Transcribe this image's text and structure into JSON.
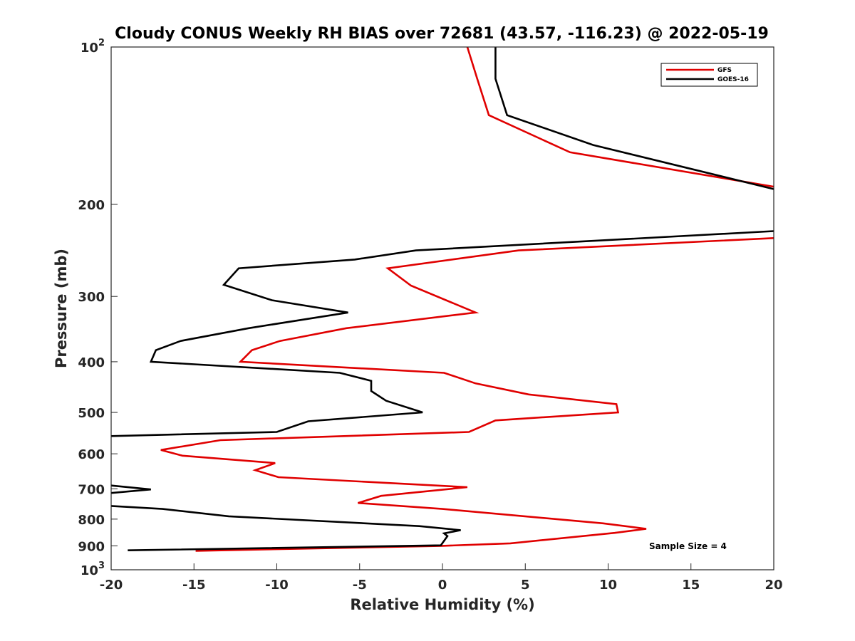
{
  "chart_data": {
    "type": "line",
    "title": "Cloudy CONUS Weekly RH BIAS over 72681 (43.57, -116.23) @ 2022-05-19",
    "xlabel": "Relative Humidity (%)",
    "ylabel": "Pressure (mb)",
    "xlim": [
      -20,
      20
    ],
    "ylim": [
      100,
      1000
    ],
    "y_scale": "log",
    "y_reversed": true,
    "grid": false,
    "legend_location": "top-right",
    "x_ticks": [
      -20,
      -15,
      -10,
      -5,
      0,
      5,
      10,
      15,
      20
    ],
    "x_tick_labels": [
      "-20",
      "-15",
      "-10",
      "-5",
      "0",
      "5",
      "10",
      "15",
      "20"
    ],
    "y_ticks": [
      {
        "value": 100,
        "base": "10",
        "exp": "2"
      },
      {
        "value": 200,
        "label": "200"
      },
      {
        "value": 300,
        "label": "300"
      },
      {
        "value": 400,
        "label": "400"
      },
      {
        "value": 500,
        "label": "500"
      },
      {
        "value": 600,
        "label": "600"
      },
      {
        "value": 700,
        "label": "700"
      },
      {
        "value": 800,
        "label": "800"
      },
      {
        "value": 900,
        "label": "900"
      },
      {
        "value": 1000,
        "base": "10",
        "exp": "3"
      }
    ],
    "series": [
      {
        "name": "GFS",
        "color": "#e00000",
        "segments": [
          [
            [
              1.5,
              100
            ],
            [
              2.1,
              115
            ],
            [
              2.8,
              135
            ],
            [
              7.7,
              159
            ],
            [
              20.0,
              185
            ]
          ],
          [
            [
              20.0,
              232
            ],
            [
              4.6,
              245
            ],
            [
              -3.3,
              265
            ],
            [
              -1.9,
              286
            ],
            [
              2.0,
              322
            ],
            [
              -5.8,
              345
            ],
            [
              -9.8,
              365
            ],
            [
              -11.5,
              380
            ],
            [
              -12.2,
              400
            ],
            [
              0.1,
              420
            ],
            [
              2.0,
              440
            ],
            [
              5.2,
              462
            ],
            [
              10.5,
              482
            ],
            [
              10.6,
              500
            ],
            [
              3.2,
              518
            ],
            [
              1.6,
              545
            ],
            [
              -13.4,
              565
            ],
            [
              -17.0,
              590
            ],
            [
              -15.7,
              605
            ],
            [
              -10.1,
              625
            ],
            [
              -11.3,
              645
            ],
            [
              -9.9,
              665
            ],
            [
              1.5,
              695
            ],
            [
              -3.7,
              722
            ],
            [
              -5.1,
              745
            ],
            [
              0.0,
              765
            ],
            [
              9.7,
              815
            ],
            [
              12.3,
              835
            ],
            [
              10.4,
              850
            ],
            [
              4.1,
              890
            ],
            [
              0.0,
              900
            ],
            [
              -14.9,
              920
            ]
          ]
        ]
      },
      {
        "name": "GOES-16",
        "color": "#000000",
        "segments": [
          [
            [
              3.2,
              100
            ],
            [
              3.2,
              115
            ],
            [
              3.9,
              135
            ],
            [
              9.1,
              154
            ],
            [
              20.0,
              187
            ]
          ],
          [
            [
              20.0,
              225
            ],
            [
              -1.6,
              245
            ],
            [
              -5.3,
              255
            ],
            [
              -12.3,
              265
            ],
            [
              -13.2,
              285
            ],
            [
              -10.3,
              305
            ],
            [
              -5.7,
              322
            ],
            [
              -11.7,
              345
            ],
            [
              -15.8,
              365
            ],
            [
              -17.3,
              380
            ],
            [
              -17.6,
              400
            ],
            [
              -6.2,
              420
            ],
            [
              -4.3,
              435
            ],
            [
              -4.3,
              455
            ],
            [
              -3.4,
              475
            ],
            [
              -1.2,
              500
            ],
            [
              -8.1,
              520
            ],
            [
              -10.0,
              545
            ],
            [
              -20.0,
              555
            ]
          ],
          [
            [
              -20.0,
              690
            ],
            [
              -17.6,
              702
            ],
            [
              -20.0,
              713
            ]
          ],
          [
            [
              -20.0,
              755
            ],
            [
              -16.9,
              765
            ],
            [
              -12.9,
              790
            ],
            [
              -1.4,
              825
            ],
            [
              1.1,
              840
            ],
            [
              0.1,
              852
            ],
            [
              0.3,
              862
            ],
            [
              -0.1,
              898
            ],
            [
              -19.0,
              918
            ]
          ]
        ]
      }
    ],
    "annotation": "Sample Size = 4"
  }
}
